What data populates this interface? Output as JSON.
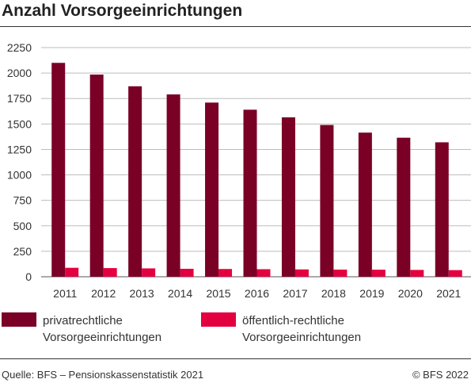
{
  "title": "Anzahl Vorsorgeeinrichtungen",
  "legend": {
    "private_label": "privatrechtliche Vorsorgeeinrichtungen",
    "public_label": "öffentlich-rechtliche Vorsorgeeinrichtungen"
  },
  "footer": {
    "source": "Quelle: BFS – Pensionskassenstatistik 2021",
    "copyright": "© BFS 2022"
  },
  "colors": {
    "private": "#7a0026",
    "public": "#e3003f"
  },
  "chart_data": {
    "type": "bar",
    "categories": [
      "2011",
      "2012",
      "2013",
      "2014",
      "2015",
      "2016",
      "2017",
      "2018",
      "2019",
      "2020",
      "2021"
    ],
    "series": [
      {
        "name": "privatrechtliche Vorsorgeeinrichtungen",
        "values": [
          2100,
          1985,
          1870,
          1790,
          1710,
          1640,
          1565,
          1490,
          1415,
          1365,
          1320
        ]
      },
      {
        "name": "öffentlich-rechtliche Vorsorgeeinrichtungen",
        "values": [
          88,
          85,
          82,
          78,
          76,
          74,
          72,
          70,
          69,
          67,
          65
        ]
      }
    ],
    "yticks": [
      0,
      250,
      500,
      750,
      1000,
      1250,
      1500,
      1750,
      2000,
      2250
    ],
    "ylim": [
      0,
      2250
    ],
    "grid": true,
    "legend_position": "bottom"
  }
}
